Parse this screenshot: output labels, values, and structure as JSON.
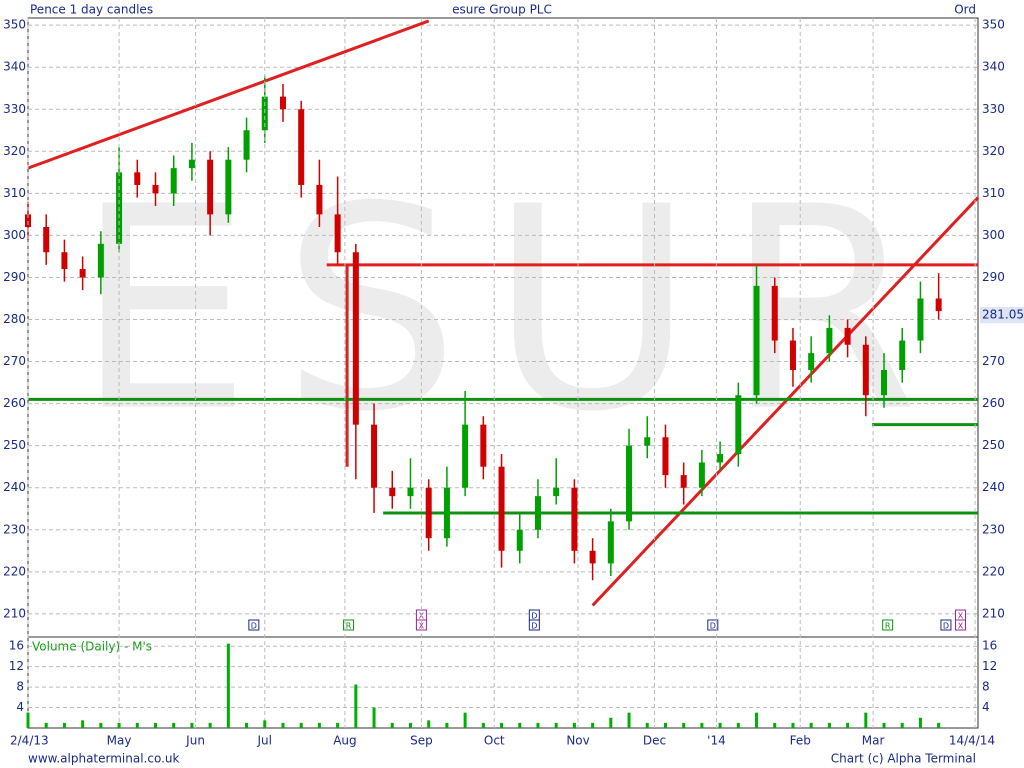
{
  "chart_data": [
    {
      "type": "candlestick",
      "title": "esure Group PLC",
      "subtitle": "Pence 1 day candles",
      "share_class": "Ord",
      "watermark": "ESUR",
      "last_price": 281.05,
      "x": [
        0,
        5,
        10,
        15,
        20,
        25,
        30,
        35,
        40,
        45,
        50,
        55,
        60,
        65,
        70,
        75,
        80,
        85,
        90,
        95,
        100,
        105,
        110,
        115,
        120,
        125,
        130,
        135,
        140,
        145,
        150,
        155,
        160,
        165,
        170,
        175,
        180,
        185,
        190,
        195,
        200,
        205,
        210,
        215,
        220,
        225,
        230,
        235,
        240,
        245,
        250
      ],
      "open": [
        305,
        302,
        296,
        292,
        290,
        298,
        315,
        312,
        310,
        316,
        318,
        305,
        318,
        325,
        333,
        330,
        312,
        305,
        296,
        255,
        240,
        238,
        240,
        228,
        240,
        255,
        245,
        225,
        230,
        238,
        240,
        225,
        222,
        232,
        250,
        252,
        243,
        240,
        246,
        248,
        262,
        288,
        275,
        268,
        272,
        278,
        274,
        262,
        268,
        275,
        285
      ],
      "high": [
        308,
        305,
        299,
        295,
        301,
        321,
        318,
        315,
        319,
        322,
        320,
        321,
        328,
        338,
        336,
        332,
        318,
        314,
        298,
        260,
        244,
        247,
        242,
        245,
        263,
        257,
        248,
        234,
        242,
        247,
        242,
        228,
        235,
        254,
        257,
        255,
        246,
        249,
        251,
        265,
        293,
        290,
        278,
        276,
        281,
        280,
        276,
        272,
        278,
        289,
        291
      ],
      "low": [
        299,
        293,
        289,
        287,
        286,
        296,
        309,
        307,
        307,
        313,
        300,
        303,
        315,
        322,
        327,
        309,
        302,
        293,
        242,
        234,
        235,
        235,
        225,
        226,
        238,
        242,
        221,
        222,
        228,
        236,
        222,
        218,
        219,
        230,
        247,
        240,
        236,
        238,
        244,
        245,
        260,
        272,
        264,
        265,
        270,
        271,
        257,
        259,
        265,
        272,
        280
      ],
      "close": [
        302,
        296,
        292,
        290,
        298,
        315,
        312,
        310,
        316,
        318,
        305,
        318,
        325,
        333,
        330,
        312,
        305,
        296,
        255,
        240,
        238,
        240,
        228,
        240,
        255,
        245,
        225,
        230,
        238,
        240,
        225,
        222,
        232,
        250,
        252,
        243,
        240,
        246,
        248,
        262,
        288,
        275,
        268,
        272,
        278,
        274,
        262,
        268,
        275,
        285,
        282
      ],
      "up_color": "#00a000",
      "down_color": "#d00000",
      "xlim": [
        0,
        260.8
      ],
      "ylim": [
        204.5,
        351.7
      ],
      "yticks": [
        210,
        220,
        230,
        240,
        250,
        260,
        270,
        280,
        290,
        300,
        310,
        320,
        330,
        340,
        350
      ],
      "grid": true,
      "lines": [
        {
          "color": "#e02020",
          "x": [
            0,
            110
          ],
          "y": [
            316,
            351
          ]
        },
        {
          "color": "#e02020",
          "x": [
            82,
            260.8
          ],
          "y": [
            293,
            293
          ]
        },
        {
          "color": "#e02020",
          "x": [
            87.6,
            87.6
          ],
          "y": [
            293,
            245
          ]
        },
        {
          "color": "#e02020",
          "x": [
            155,
            260.8
          ],
          "y": [
            212,
            309
          ]
        },
        {
          "color": "#109010",
          "x": [
            0,
            260.8
          ],
          "y": [
            261,
            261
          ]
        },
        {
          "color": "#109010",
          "x": [
            97.5,
            260.8
          ],
          "y": [
            234,
            234
          ]
        },
        {
          "color": "#109010",
          "x": [
            231.7,
            260.8
          ],
          "y": [
            255,
            255
          ]
        }
      ],
      "events": [
        {
          "x": 62,
          "labels": [
            "D"
          ]
        },
        {
          "x": 88,
          "labels": [
            "R"
          ]
        },
        {
          "x": 108,
          "labels": [
            "X",
            "X"
          ]
        },
        {
          "x": 139,
          "labels": [
            "D",
            "D"
          ]
        },
        {
          "x": 188,
          "labels": [
            "D"
          ]
        },
        {
          "x": 236,
          "labels": [
            "R"
          ]
        },
        {
          "x": 252,
          "labels": [
            "D"
          ]
        },
        {
          "x": 256,
          "labels": [
            "X",
            "X"
          ]
        }
      ]
    },
    {
      "type": "bar",
      "title": "Volume (Daily) - M's",
      "color": "#00b000",
      "x": [
        0,
        5,
        10,
        15,
        20,
        25,
        30,
        35,
        40,
        45,
        50,
        55,
        60,
        65,
        70,
        75,
        80,
        85,
        90,
        95,
        100,
        105,
        110,
        115,
        120,
        125,
        130,
        135,
        140,
        145,
        150,
        155,
        160,
        165,
        170,
        175,
        180,
        185,
        190,
        195,
        200,
        205,
        210,
        215,
        220,
        225,
        230,
        235,
        240,
        245,
        250
      ],
      "values": [
        3,
        1,
        1,
        1.5,
        1,
        1,
        1,
        1,
        1,
        1,
        1,
        16.5,
        1,
        1.5,
        1,
        1,
        1,
        1,
        8.5,
        4,
        1,
        1,
        1.5,
        1,
        3,
        1,
        1,
        1,
        1,
        1,
        1,
        1,
        2,
        3,
        1,
        1,
        1,
        1,
        1,
        1,
        3,
        1,
        1,
        1,
        1,
        1,
        3,
        1,
        1,
        2,
        1
      ],
      "xlim": [
        0,
        260.8
      ],
      "ylim": [
        0,
        17.8
      ],
      "yticks": [
        4,
        8,
        12,
        16
      ],
      "xticks": [
        {
          "value": 0,
          "label": "2/4/13"
        },
        {
          "value": 25,
          "label": "May"
        },
        {
          "value": 46,
          "label": "Jun"
        },
        {
          "value": 65,
          "label": "Jul"
        },
        {
          "value": 87,
          "label": "Aug"
        },
        {
          "value": 108,
          "label": "Sep"
        },
        {
          "value": 128,
          "label": "Oct"
        },
        {
          "value": 151,
          "label": "Nov"
        },
        {
          "value": 172,
          "label": "Dec"
        },
        {
          "value": 189,
          "label": "'14"
        },
        {
          "value": 212,
          "label": "Feb"
        },
        {
          "value": 232,
          "label": "Mar"
        },
        {
          "value": 260,
          "label": "14/4/14"
        }
      ]
    }
  ],
  "footer": {
    "left": "www.alphaterminal.co.uk",
    "right": "Chart (c) Alpha Terminal"
  }
}
